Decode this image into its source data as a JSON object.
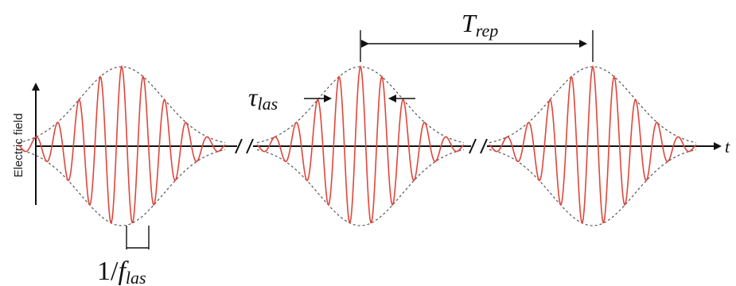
{
  "axis": {
    "y_label": "Electric field",
    "x_label": "t"
  },
  "annotations": {
    "period_symbol": "T",
    "period_subscript": "rep",
    "duration_symbol": "τ",
    "duration_subscript": "las",
    "inverse_freq_prefix": "1/",
    "inverse_freq_symbol": "f",
    "inverse_freq_subscript": "las"
  },
  "colors": {
    "wave": "#e0463a",
    "envelope": "#555555",
    "axis": "#111111"
  },
  "pulses": {
    "count": 3,
    "axis_breaks": 2
  }
}
